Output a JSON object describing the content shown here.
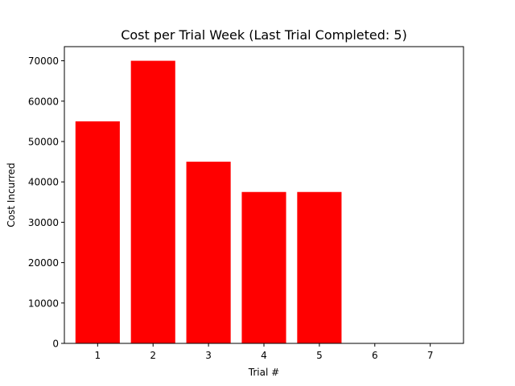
{
  "chart_data": {
    "type": "bar",
    "title": "Cost per Trial Week (Last Trial Completed: 5)",
    "xlabel": "Trial #",
    "ylabel": "Cost Incurred",
    "categories": [
      "1",
      "2",
      "3",
      "4",
      "5",
      "6",
      "7"
    ],
    "values": [
      55000,
      70000,
      45000,
      37500,
      37500,
      0,
      0
    ],
    "ylim": [
      0,
      73500
    ],
    "yticks": [
      0,
      10000,
      20000,
      30000,
      40000,
      50000,
      60000,
      70000
    ],
    "bar_color": "#ff0000",
    "grid": false
  }
}
